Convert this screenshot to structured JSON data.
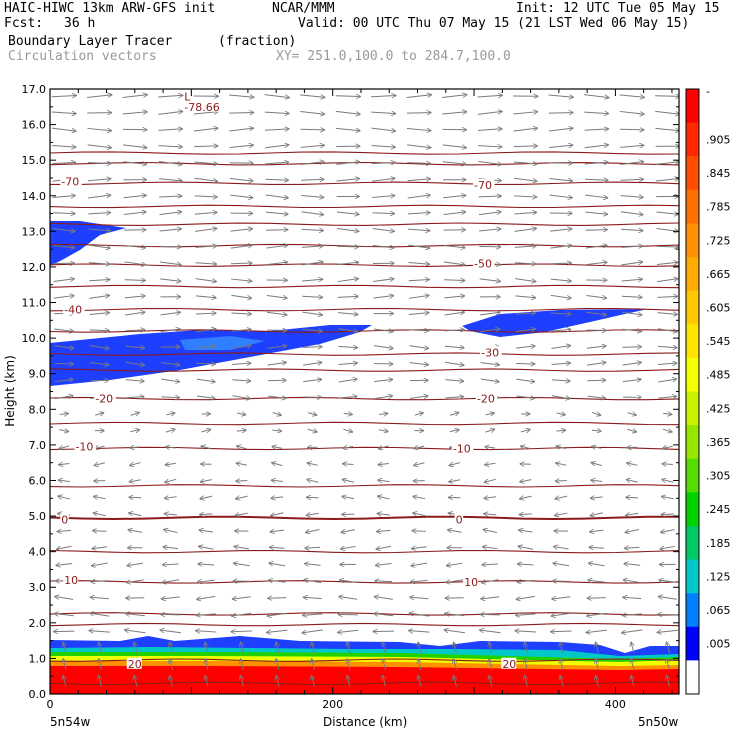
{
  "header": {
    "model": "HAIC-HIWC 13km ARW-GFS init",
    "org": "NCAR/MMM",
    "init": "Init: 12 UTC Tue 05 May 15",
    "fcst_label": "Fcst:",
    "fcst_value": "36 h",
    "valid": "Valid: 00 UTC Thu 07 May 15 (21 LST Wed 06 May 15)",
    "field": "Boundary Layer Tracer",
    "field_units": "(fraction)",
    "overlay": "Circulation vectors",
    "xy": "XY= 251.0,100.0 to 284.7,100.0"
  },
  "chart_data": {
    "type": "heatmap",
    "title": "Boundary Layer Tracer",
    "xlabel": "Distance (km)",
    "ylabel": "Height (km)",
    "xlim": [
      0,
      445
    ],
    "ylim": [
      0,
      17
    ],
    "x_ticks": [
      0,
      200,
      400
    ],
    "y_ticks": [
      "0.0",
      "1.0",
      "2.0",
      "3.0",
      "4.0",
      "5.0",
      "6.0",
      "7.0",
      "8.0",
      "9.0",
      "10.0",
      "11.0",
      "12.0",
      "13.0",
      "14.0",
      "15.0",
      "16.0",
      "17.0"
    ],
    "x_end_labels": [
      "5n54w",
      "5n50w"
    ],
    "colorbar": {
      "labels": [
        "-",
        ".905",
        ".845",
        ".785",
        ".725",
        ".665",
        ".605",
        ".545",
        ".485",
        ".425",
        ".365",
        ".305",
        ".245",
        ".185",
        ".125",
        ".065",
        ".005"
      ],
      "colors": [
        "#ff0000",
        "#ff2a00",
        "#ff4e00",
        "#ff7000",
        "#ff9000",
        "#ffac00",
        "#ffc800",
        "#ffe400",
        "#f4ff00",
        "#c8f000",
        "#96e600",
        "#55dc00",
        "#00d200",
        "#00c864",
        "#00c8c8",
        "#0080ff",
        "#0000ff",
        "#ffffff"
      ]
    },
    "temperature_contours": [
      {
        "label": "-78.66",
        "x": 95,
        "y": 16.5
      },
      {
        "label": "-70",
        "x": 8,
        "y": 14.4
      },
      {
        "label": "-70",
        "x": 300,
        "y": 14.3
      },
      {
        "label": "-50",
        "x": 300,
        "y": 12.1
      },
      {
        "label": "-40",
        "x": 10,
        "y": 10.8
      },
      {
        "label": "-30",
        "x": 305,
        "y": 9.6
      },
      {
        "label": "-20",
        "x": 32,
        "y": 8.3
      },
      {
        "label": "-20",
        "x": 302,
        "y": 8.3
      },
      {
        "label": "-10",
        "x": 18,
        "y": 6.95
      },
      {
        "label": "-10",
        "x": 285,
        "y": 6.9
      },
      {
        "label": "0",
        "x": 8,
        "y": 4.9
      },
      {
        "label": "0",
        "x": 287,
        "y": 4.9
      },
      {
        "label": "10",
        "x": 10,
        "y": 3.2
      },
      {
        "label": "10",
        "x": 293,
        "y": 3.15
      },
      {
        "label": "20",
        "x": 55,
        "y": 0.85
      },
      {
        "label": "20",
        "x": 320,
        "y": 0.85
      }
    ],
    "low_marker": {
      "label": "L",
      "x": 95,
      "y": 16.9
    },
    "contour_levels_km": [
      0.3,
      0.95,
      1.95,
      2.25,
      3.15,
      4.0,
      4.95,
      5.85,
      6.9,
      7.6,
      8.3,
      9.1,
      9.55,
      10.2,
      10.8,
      11.45,
      12.05,
      12.6,
      13.2,
      13.7,
      14.35,
      14.9,
      15.2
    ]
  }
}
